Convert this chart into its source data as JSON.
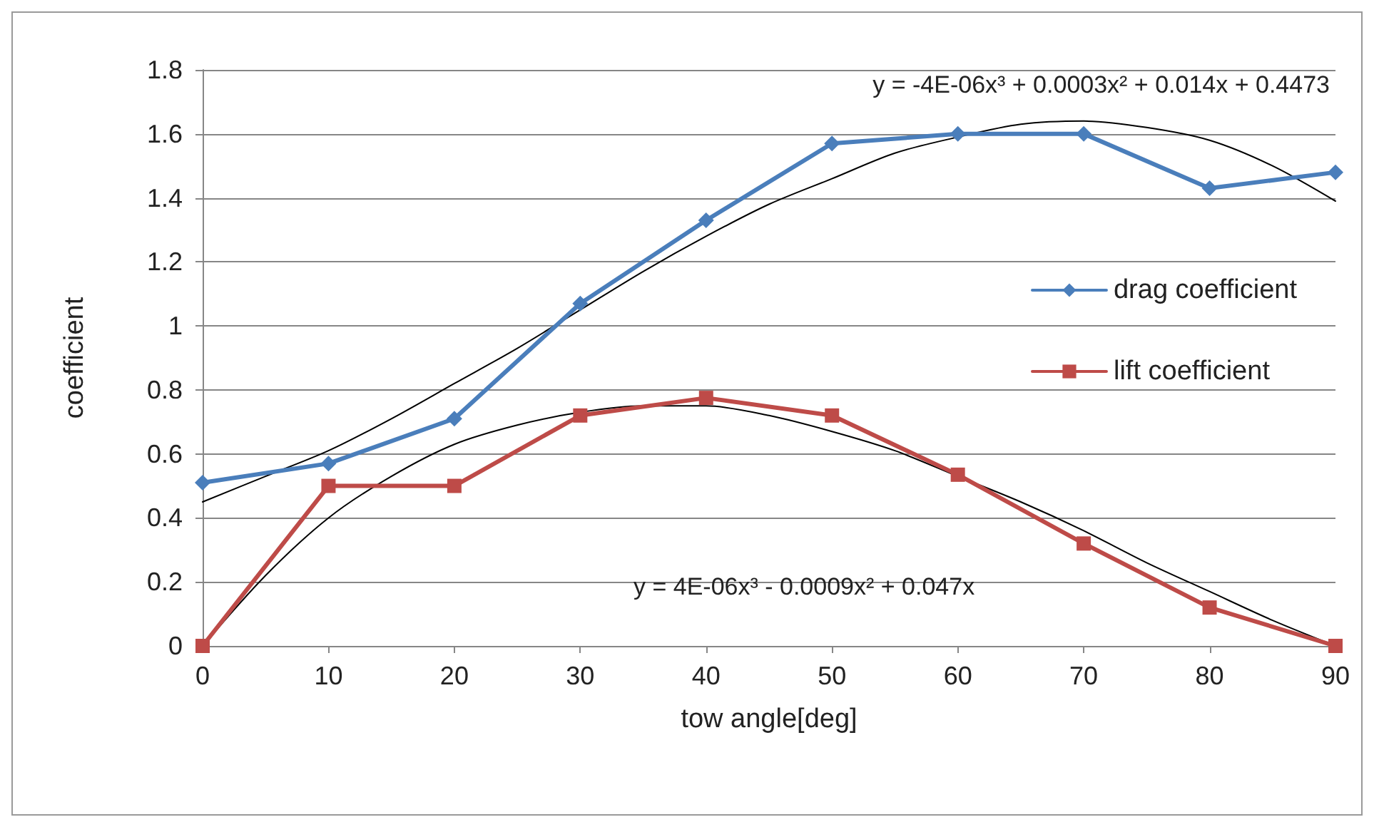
{
  "chart_data": {
    "type": "line",
    "xlabel": "tow angle[deg]",
    "ylabel": "coefficient",
    "x": [
      0,
      10,
      20,
      30,
      40,
      50,
      60,
      70,
      80,
      90
    ],
    "xlim": [
      0,
      90
    ],
    "xticks": [
      0,
      10,
      20,
      30,
      40,
      50,
      60,
      70,
      80,
      90
    ],
    "ylim": [
      0,
      1.8
    ],
    "yticks": [
      0,
      0.2,
      0.4,
      0.6,
      0.8,
      1,
      1.2,
      1.4,
      1.6,
      1.8
    ],
    "grid": "y",
    "legend": "right",
    "series": [
      {
        "name": "drag coefficient",
        "color": "#4a7ebb",
        "marker": "diamond",
        "values": [
          0.51,
          0.57,
          0.71,
          1.07,
          1.33,
          1.57,
          1.6,
          1.6,
          1.43,
          1.48
        ]
      },
      {
        "name": "lift coefficient",
        "color": "#be4b48",
        "marker": "square",
        "values": [
          0,
          0.5,
          0.5,
          0.72,
          0.775,
          0.72,
          0.535,
          0.32,
          0.12,
          0
        ]
      },
      {
        "color": "#000000",
        "marker": "none",
        "x": [
          0,
          5,
          10,
          15,
          20,
          25,
          30,
          35,
          40,
          45,
          50,
          55,
          60,
          65,
          70,
          75,
          80,
          85,
          90
        ],
        "values": [
          0.45,
          0.53,
          0.61,
          0.71,
          0.82,
          0.93,
          1.05,
          1.17,
          1.28,
          1.38,
          1.46,
          1.54,
          1.59,
          1.63,
          1.64,
          1.62,
          1.58,
          1.5,
          1.39
        ]
      },
      {
        "color": "#000000",
        "marker": "none",
        "x": [
          0,
          5,
          10,
          15,
          20,
          25,
          30,
          35,
          40,
          45,
          50,
          55,
          60,
          65,
          70,
          75,
          80,
          85,
          90
        ],
        "values": [
          0,
          0.22,
          0.4,
          0.53,
          0.63,
          0.69,
          0.73,
          0.75,
          0.75,
          0.72,
          0.67,
          0.61,
          0.53,
          0.45,
          0.36,
          0.26,
          0.17,
          0.08,
          0
        ]
      }
    ],
    "annotations": [
      "y = -4E-06x³ + 0.0003x² + 0.014x + 0.4473",
      "y = 4E-06x³ - 0.0009x² + 0.047x"
    ]
  }
}
